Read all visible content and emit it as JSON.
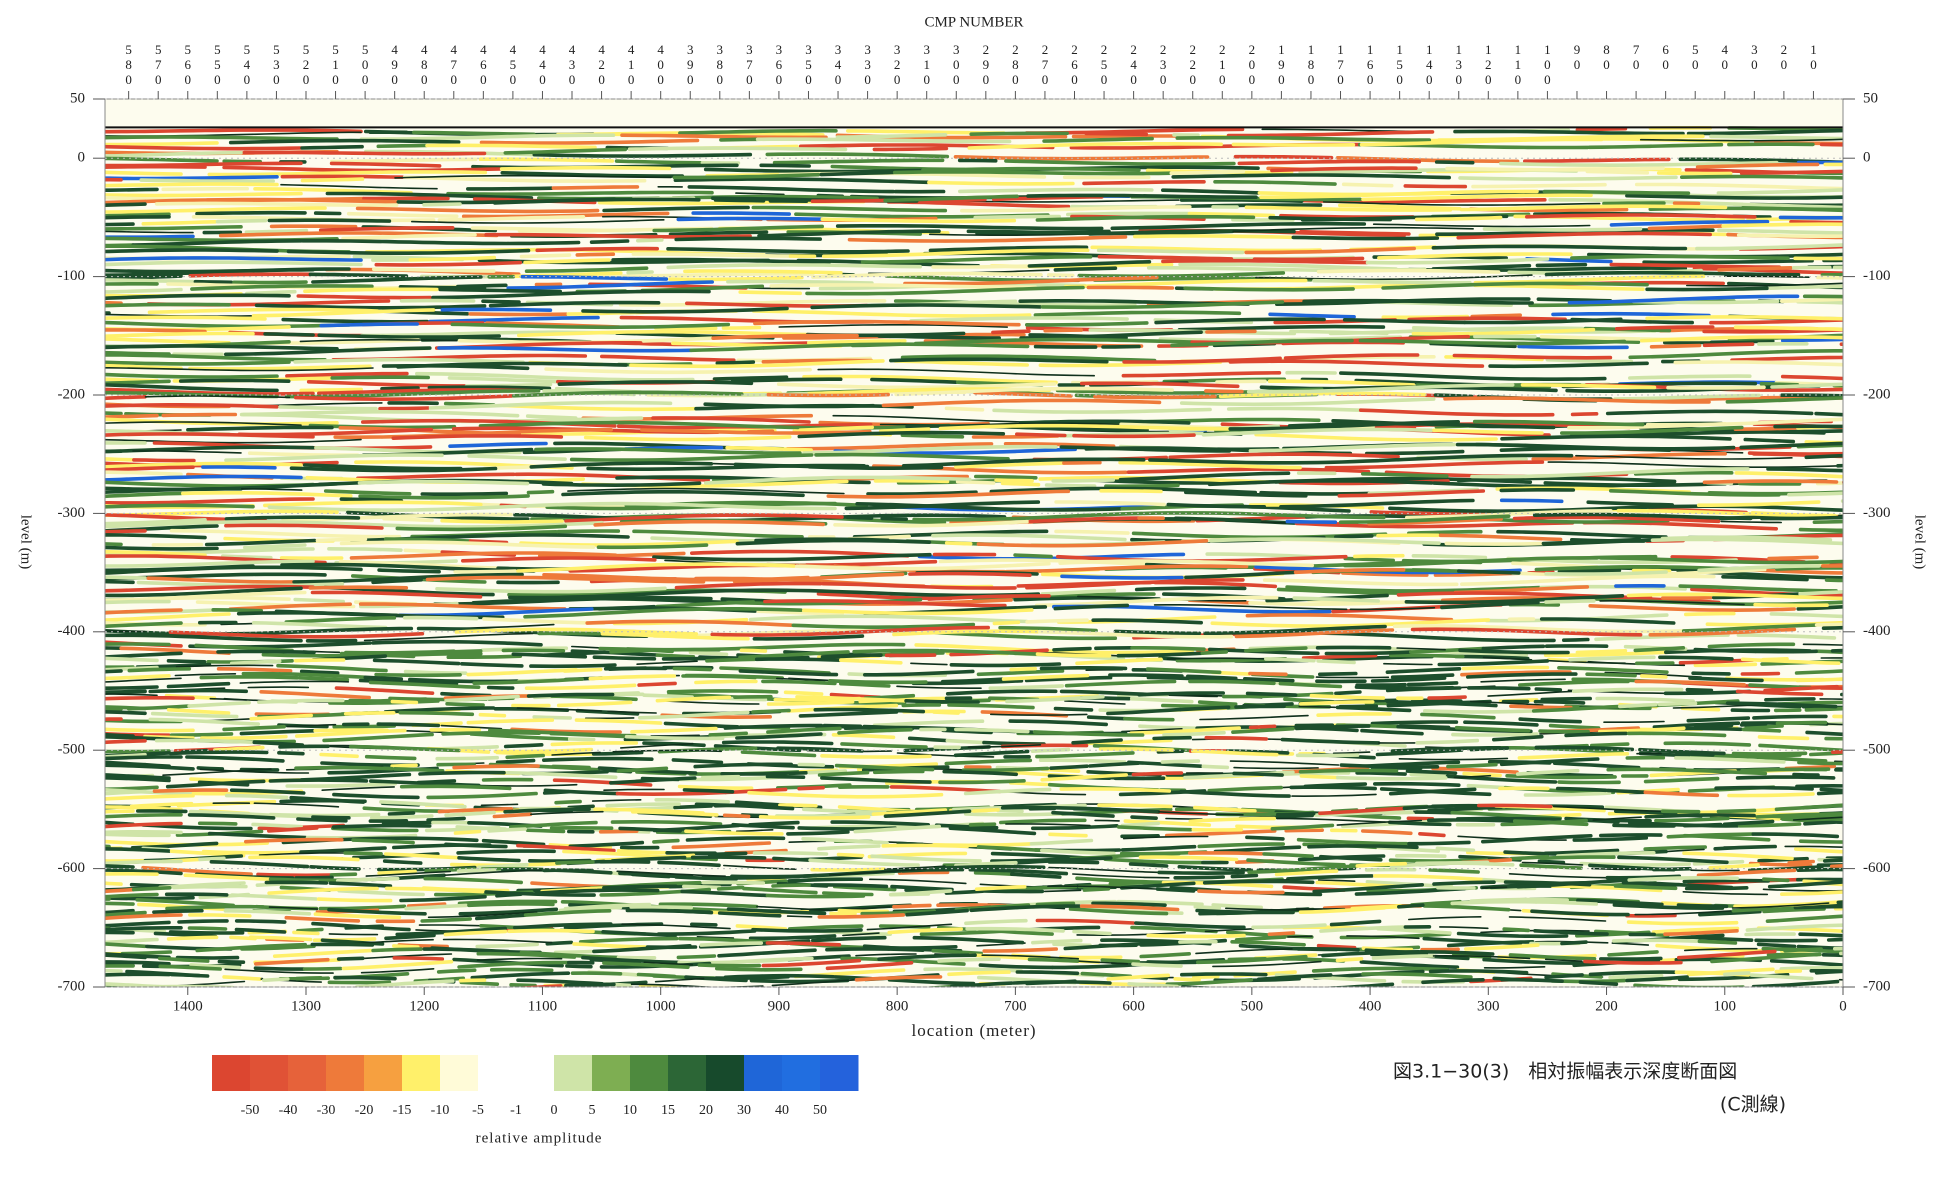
{
  "chart_data": {
    "type": "seismic",
    "x_label": "location (meter)",
    "y_label": "level (m)",
    "xlim": [
      1470,
      0
    ],
    "xticks": [
      1400,
      1300,
      1200,
      1100,
      1000,
      900,
      800,
      700,
      600,
      500,
      400,
      300,
      200,
      100,
      0
    ],
    "ylim": [
      -700,
      50
    ],
    "yticks": [
      50,
      0,
      -100,
      -200,
      -300,
      -400,
      -500,
      -600,
      -700
    ],
    "grid": true,
    "top_axis": {
      "label": "CMP NUMBER",
      "lim": [
        588,
        0
      ],
      "ticks": [
        580,
        570,
        560,
        550,
        540,
        530,
        520,
        510,
        500,
        490,
        480,
        470,
        460,
        450,
        440,
        430,
        420,
        410,
        400,
        390,
        380,
        370,
        360,
        350,
        340,
        330,
        320,
        310,
        300,
        290,
        280,
        270,
        260,
        250,
        240,
        230,
        220,
        210,
        200,
        190,
        180,
        170,
        160,
        150,
        140,
        130,
        120,
        110,
        100,
        90,
        80,
        70,
        60,
        50,
        40,
        30,
        20,
        10
      ]
    },
    "colorbar": {
      "label": "relative amplitude",
      "levels": [
        -50,
        -40,
        -30,
        -20,
        -15,
        -10,
        -5,
        -1,
        0,
        5,
        10,
        15,
        20,
        30,
        40,
        50
      ],
      "colors": [
        "#dc4630",
        "#e05236",
        "#e6623a",
        "#ee7a3a",
        "#f6a040",
        "#fff06a",
        "#fffbd8",
        "#ffffff",
        "#ffffff",
        "#cfe4a8",
        "#7eae52",
        "#4e8a3e",
        "#2c6636",
        "#174a2c",
        "#1f66d8",
        "#216ee0",
        "#2462dc"
      ]
    },
    "caption": [
      "図3.1−30(3)　相対振幅表示深度断面図",
      "(C測線)"
    ]
  }
}
